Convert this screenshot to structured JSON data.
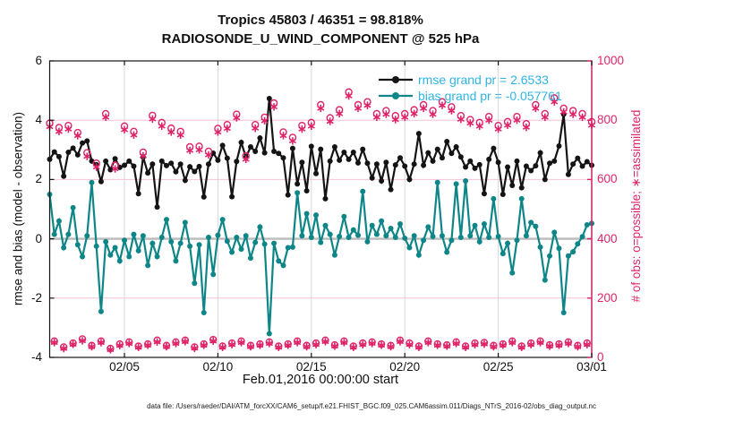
{
  "title": {
    "line1": "Tropics 45803 / 46351 = 98.818%",
    "line2": "RADIOSONDE_U_WIND_COMPONENT @ 525 hPa"
  },
  "legend": [
    {
      "series": "rmse",
      "label": "rmse grand pr = 2.6533"
    },
    {
      "series": "bias",
      "label": "bias grand pr = -0.057761"
    }
  ],
  "footer": {
    "data_file": "data file: /Users/raeder/DAI/ATM_forcXX/CAM6_setup/f.e21.FHIST_BGC.f09_025.CAM6assim.011/Diags_NTrS_2016-02/obs_diag_output.nc"
  },
  "colors": {
    "accent_pink": "#de2369",
    "teal": "#0e8688",
    "black": "#141414",
    "legend_text": "#30b4e4",
    "grid_pink": "#f5c2d7",
    "grid_grey": "#d8d8d8",
    "zero_line": "#bbbbbb",
    "background": "#ffffff"
  },
  "chart_data": {
    "type": "line",
    "title": "Tropics 45803 / 46351 = 98.818% | RADIOSONDE_U_WIND_COMPONENT @ 525 hPa",
    "xlabel": "Feb.01,2016 00:00:00 start",
    "ylabel_left": "rmse and bias (model - observation)",
    "ylabel_right": "# of obs: o=possible; ∗=assimilated",
    "ylim_left": [
      -4,
      6
    ],
    "ylim_right": [
      0,
      1000
    ],
    "x_start": "02/01 00:00",
    "x_end": "03/01 00:00",
    "time_step_hours": 6,
    "x_span_days": 29,
    "grid": true,
    "legend_position": "top-center-inside",
    "x_tick_labels": [
      "02/05",
      "02/10",
      "02/15",
      "02/20",
      "02/25",
      "03/01"
    ],
    "x_tick_days": [
      4,
      9,
      14,
      19,
      24,
      29
    ],
    "y_left_ticks": [
      6,
      4,
      2,
      0,
      -2,
      -4
    ],
    "y_right_ticks": [
      1000,
      800,
      600,
      400,
      200,
      0
    ],
    "series": [
      {
        "name": "rmse",
        "axis": "left",
        "marker": "dot",
        "color": "#141414",
        "values": [
          2.68,
          2.93,
          2.77,
          2.11,
          2.92,
          3.06,
          2.83,
          3.23,
          3.3,
          2.62,
          2.5,
          1.93,
          2.62,
          2.33,
          2.7,
          2.41,
          2.48,
          2.62,
          2.45,
          1.52,
          2.76,
          2.22,
          2.52,
          1.07,
          2.62,
          2.47,
          2.55,
          2.26,
          2.52,
          1.97,
          2.43,
          2.27,
          2.44,
          1.41,
          2.52,
          2.89,
          2.65,
          3.15,
          2.72,
          1.42,
          2.61,
          3.25,
          2.75,
          3.1,
          2.95,
          3.4,
          2.9,
          4.73,
          2.95,
          2.88,
          2.73,
          1.48,
          3.05,
          1.85,
          2.58,
          1.62,
          3.12,
          2.2,
          3.02,
          1.35,
          2.62,
          3.1,
          2.65,
          2.92,
          2.68,
          2.92,
          2.56,
          3.02,
          2.55,
          2.05,
          2.52,
          1.95,
          2.58,
          1.66,
          2.49,
          2.73,
          2.45,
          2.0,
          2.52,
          3.55,
          2.48,
          2.9,
          2.62,
          3.02,
          2.73,
          3.28,
          2.88,
          3.1,
          2.76,
          2.42,
          2.62,
          2.38,
          2.5,
          1.52,
          2.68,
          3.05,
          2.58,
          1.5,
          2.42,
          1.8,
          2.62,
          1.72,
          2.45,
          2.3,
          2.46,
          2.9,
          2.0,
          2.55,
          2.62,
          3.13,
          4.2,
          2.17,
          2.52,
          2.72,
          2.45,
          2.6,
          2.48
        ]
      },
      {
        "name": "bias",
        "axis": "left",
        "marker": "dot",
        "color": "#0e8688",
        "values": [
          1.5,
          0.15,
          0.6,
          -0.3,
          0.15,
          1.05,
          -0.2,
          -0.6,
          0.1,
          1.9,
          -0.25,
          -2.45,
          -0.1,
          -0.55,
          -0.3,
          -0.75,
          -0.05,
          -0.6,
          0.15,
          -0.4,
          0.1,
          -0.9,
          -0.15,
          -0.6,
          0.05,
          0.65,
          -0.1,
          -0.75,
          -0.15,
          0.55,
          -0.25,
          -1.5,
          -0.2,
          -2.49,
          0.05,
          -1.2,
          0.12,
          0.65,
          -0.08,
          -0.45,
          0.05,
          -0.35,
          0.1,
          -0.65,
          -0.12,
          0.4,
          -0.18,
          -3.2,
          -0.15,
          -0.75,
          -0.9,
          -0.3,
          -0.28,
          1.55,
          0.1,
          0.85,
          0.05,
          0.8,
          -0.12,
          0.45,
          0.15,
          -0.55,
          0.08,
          0.75,
          0.05,
          0.3,
          0.12,
          1.6,
          -0.1,
          0.45,
          0.15,
          0.6,
          0.1,
          0.35,
          0.05,
          0.5,
          0.02,
          -0.3,
          0.1,
          -0.55,
          -0.05,
          0.4,
          0.08,
          1.9,
          0.1,
          -0.45,
          -0.05,
          1.85,
          0.05,
          1.95,
          0.1,
          0.45,
          -0.1,
          0.5,
          0.05,
          1.35,
          0.08,
          -0.5,
          -0.15,
          -1.15,
          -0.05,
          1.35,
          0.1,
          0.55,
          0.42,
          -0.28,
          -1.39,
          -0.58,
          0.22,
          -0.32,
          -2.49,
          -0.58,
          -0.44,
          -0.17,
          0.07,
          0.47,
          0.52
        ]
      },
      {
        "name": "possible",
        "axis": "right",
        "marker": "o",
        "color": "#de2369",
        "values": [
          790,
          55,
          775,
          35,
          782,
          48,
          758,
          62,
          690,
          40,
          655,
          55,
          822,
          30,
          648,
          45,
          780,
          52,
          762,
          38,
          692,
          45,
          816,
          58,
          792,
          40,
          773,
          52,
          762,
          58,
          710,
          35,
          712,
          45,
          695,
          60,
          772,
          38,
          785,
          48,
          820,
          55,
          680,
          40,
          785,
          45,
          810,
          52,
          858,
          38,
          760,
          45,
          742,
          55,
          782,
          40,
          792,
          48,
          852,
          58,
          808,
          42,
          835,
          55,
          895,
          38,
          852,
          48,
          862,
          52,
          822,
          45,
          832,
          40,
          815,
          58,
          822,
          48,
          835,
          38,
          852,
          55,
          832,
          45,
          862,
          42,
          845,
          52,
          815,
          38,
          802,
          48,
          792,
          50,
          812,
          40,
          782,
          45,
          795,
          55,
          812,
          38,
          788,
          48,
          852,
          55,
          822,
          42,
          875,
          45,
          840,
          52,
          832,
          40,
          822,
          48,
          795
        ]
      },
      {
        "name": "assimilated",
        "axis": "right",
        "marker": "*",
        "color": "#de2369",
        "values": [
          778,
          50,
          762,
          30,
          770,
          44,
          748,
          56,
          678,
          36,
          642,
          50,
          810,
          26,
          636,
          40,
          768,
          47,
          750,
          34,
          680,
          41,
          804,
          52,
          780,
          36,
          760,
          47,
          750,
          53,
          698,
          31,
          700,
          41,
          683,
          55,
          760,
          34,
          772,
          43,
          808,
          50,
          668,
          36,
          773,
          41,
          798,
          47,
          845,
          34,
          748,
          41,
          730,
          50,
          770,
          36,
          780,
          43,
          840,
          53,
          796,
          38,
          822,
          50,
          882,
          34,
          840,
          43,
          850,
          47,
          810,
          41,
          820,
          36,
          802,
          53,
          810,
          43,
          822,
          34,
          840,
          50,
          820,
          41,
          850,
          38,
          832,
          47,
          803,
          34,
          790,
          43,
          780,
          45,
          800,
          36,
          770,
          41,
          783,
          50,
          800,
          34,
          776,
          43,
          840,
          50,
          810,
          38,
          862,
          41,
          828,
          47,
          820,
          36,
          810,
          43,
          783
        ]
      }
    ]
  }
}
